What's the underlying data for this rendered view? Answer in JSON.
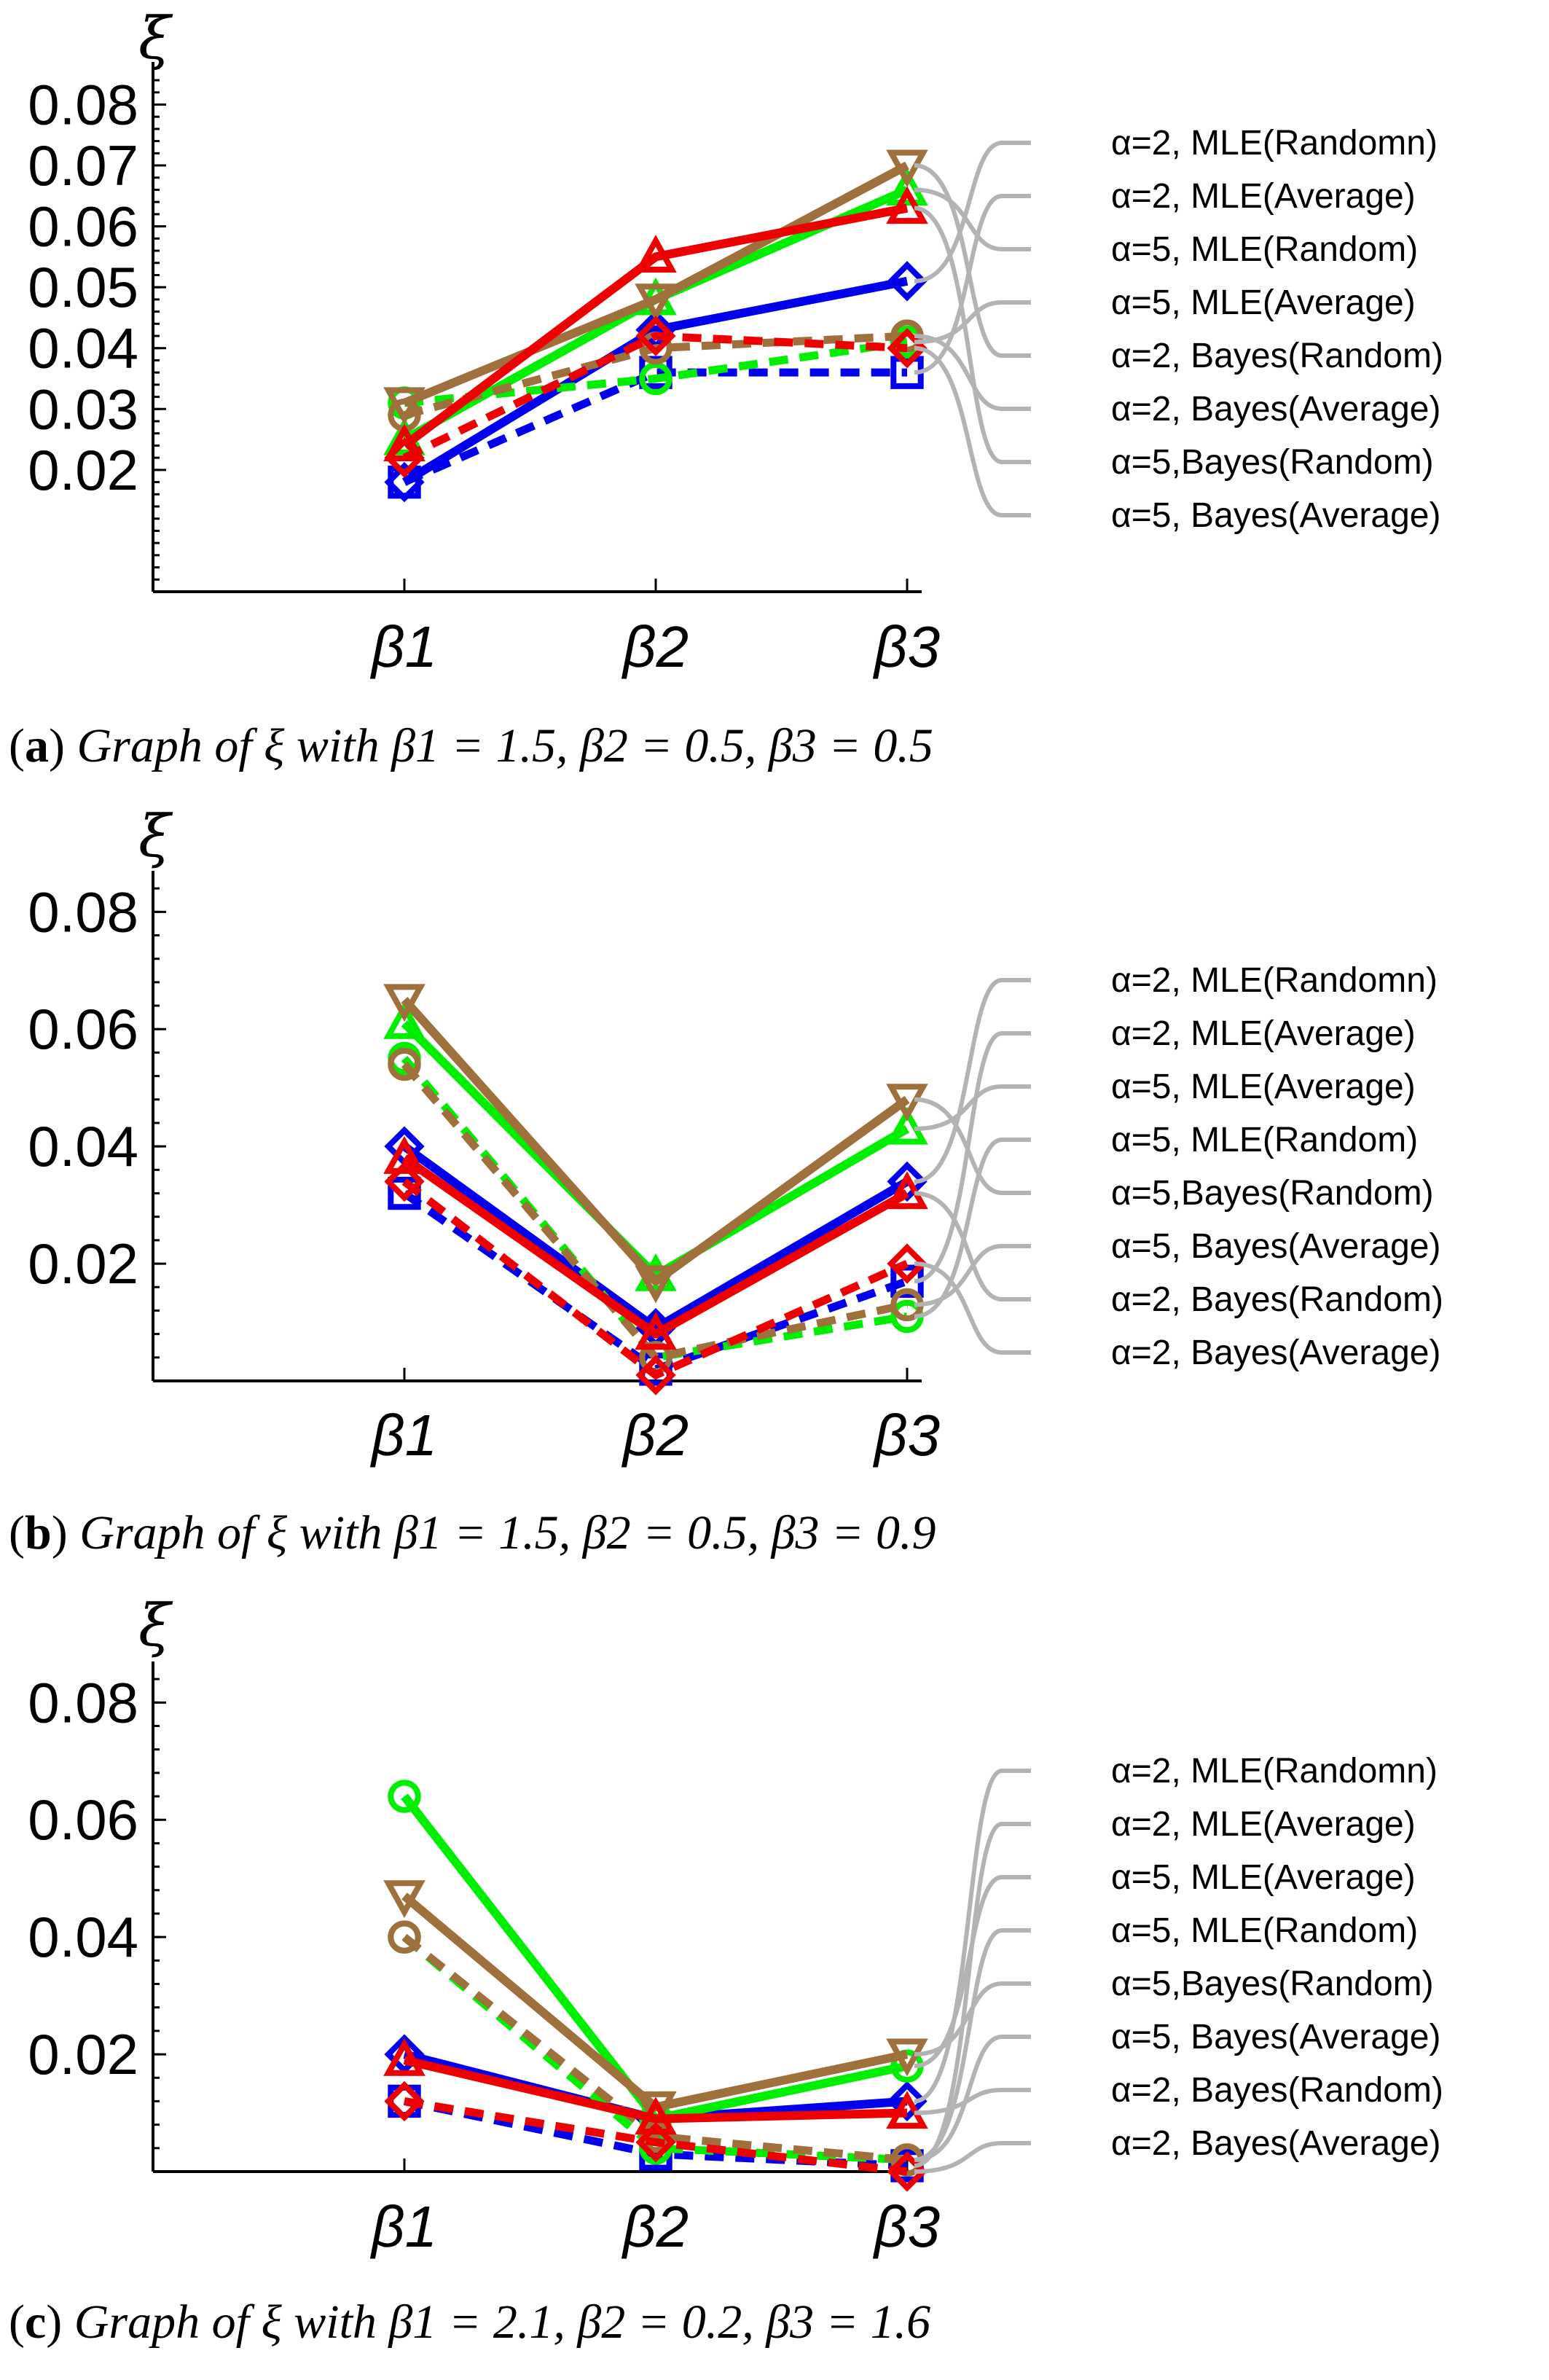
{
  "legend_line_color": "#b3b3b3",
  "palette": {
    "blue": "#0000ee",
    "green": "#00ee00",
    "red": "#ee0000",
    "brown": "#a0703c"
  },
  "chart_data": [
    {
      "type": "line",
      "id": "a",
      "title": "Graph of ξ with β1 = 1.5, β2 = 0.5, β3 = 0.5",
      "caption": {
        "label": "a",
        "text": "Graph of ξ with β1 = 1.5, β2 = 0.5, β3 = 0.5"
      },
      "ylabel": "ξ",
      "categories": [
        "β1",
        "β2",
        "β3"
      ],
      "ylim": [
        0.0,
        0.087
      ],
      "yticks": [
        0.02,
        0.03,
        0.04,
        0.05,
        0.06,
        0.07,
        0.08
      ],
      "ytick_labels": [
        "0.02",
        "0.03",
        "0.04",
        "0.05",
        "0.06",
        "0.07",
        "0.08"
      ],
      "series": [
        {
          "name": "blue-solid",
          "color": "blue",
          "dash": false,
          "marker": "diamond",
          "values": [
            0.018,
            0.043,
            0.051
          ]
        },
        {
          "name": "blue-dashed",
          "color": "blue",
          "dash": true,
          "marker": "square",
          "values": [
            0.018,
            0.036,
            0.036
          ]
        },
        {
          "name": "green-solid",
          "color": "green",
          "dash": false,
          "marker": "triangle-up",
          "values": [
            0.025,
            0.048,
            0.066
          ]
        },
        {
          "name": "green-dashed",
          "color": "green",
          "dash": true,
          "marker": "circle",
          "values": [
            0.031,
            0.035,
            0.041
          ]
        },
        {
          "name": "brown-solid",
          "color": "brown",
          "dash": false,
          "marker": "triangle-down",
          "values": [
            0.031,
            0.048,
            0.07
          ]
        },
        {
          "name": "brown-dashed",
          "color": "brown",
          "dash": true,
          "marker": "circle",
          "values": [
            0.029,
            0.04,
            0.042
          ]
        },
        {
          "name": "red-solid",
          "color": "red",
          "dash": false,
          "marker": "triangle-up",
          "values": [
            0.024,
            0.055,
            0.063
          ]
        },
        {
          "name": "red-dashed",
          "color": "red",
          "dash": true,
          "marker": "diamond",
          "values": [
            0.022,
            0.042,
            0.04
          ]
        }
      ],
      "legend": [
        "α=2, MLE(Randomn)",
        "α=2, MLE(Average)",
        "α=5, MLE(Random)",
        "α=5, MLE(Average)",
        "α=2, Bayes(Random)",
        "α=2, Bayes(Average)",
        "α=5,Bayes(Random)",
        "α=5, Bayes(Average)"
      ]
    },
    {
      "type": "line",
      "id": "b",
      "title": "Graph of ξ with β1 = 1.5, β2 = 0.5, β3 = 0.9",
      "caption": {
        "label": "b",
        "text": "Graph of ξ with β1 = 1.5, β2 = 0.5, β3 = 0.9"
      },
      "ylabel": "ξ",
      "categories": [
        "β1",
        "β2",
        "β3"
      ],
      "ylim": [
        0.0,
        0.087
      ],
      "yticks": [
        0.02,
        0.04,
        0.06,
        0.08
      ],
      "ytick_labels": [
        "0.02",
        "0.04",
        "0.06",
        "0.08"
      ],
      "series": [
        {
          "name": "blue-solid",
          "color": "blue",
          "dash": false,
          "marker": "diamond",
          "values": [
            0.04,
            0.009,
            0.034
          ]
        },
        {
          "name": "blue-dashed",
          "color": "blue",
          "dash": true,
          "marker": "square",
          "values": [
            0.032,
            0.002,
            0.017
          ]
        },
        {
          "name": "green-solid",
          "color": "green",
          "dash": false,
          "marker": "triangle-up",
          "values": [
            0.061,
            0.018,
            0.043
          ]
        },
        {
          "name": "green-dashed",
          "color": "green",
          "dash": true,
          "marker": "circle",
          "values": [
            0.055,
            0.004,
            0.011
          ]
        },
        {
          "name": "brown-solid",
          "color": "brown",
          "dash": false,
          "marker": "triangle-down",
          "values": [
            0.065,
            0.017,
            0.048
          ]
        },
        {
          "name": "brown-dashed",
          "color": "brown",
          "dash": true,
          "marker": "circle",
          "values": [
            0.054,
            0.004,
            0.013
          ]
        },
        {
          "name": "red-solid",
          "color": "red",
          "dash": false,
          "marker": "triangle-up",
          "values": [
            0.038,
            0.008,
            0.032
          ]
        },
        {
          "name": "red-dashed",
          "color": "red",
          "dash": true,
          "marker": "diamond",
          "values": [
            0.034,
            0.001,
            0.02
          ]
        }
      ],
      "legend": [
        "α=2, MLE(Randomn)",
        "α=2, MLE(Average)",
        "α=5, MLE(Average)",
        "α=5, MLE(Random)",
        "α=5,Bayes(Random)",
        "α=5, Bayes(Average)",
        "α=2, Bayes(Random)",
        "α=2, Bayes(Average)"
      ]
    },
    {
      "type": "line",
      "id": "c",
      "title": "Graph of ξ with β1 = 2.1, β2 = 0.2, β3 = 1.6",
      "caption": {
        "label": "c",
        "text": "Graph of ξ with β1 = 2.1, β2 = 0.2, β3 = 1.6"
      },
      "ylabel": "ξ",
      "categories": [
        "β1",
        "β2",
        "β3"
      ],
      "ylim": [
        0.0,
        0.087
      ],
      "yticks": [
        0.02,
        0.04,
        0.06,
        0.08
      ],
      "ytick_labels": [
        "0.02",
        "0.04",
        "0.06",
        "0.08"
      ],
      "series": [
        {
          "name": "blue-solid",
          "color": "blue",
          "dash": false,
          "marker": "diamond",
          "values": [
            0.02,
            0.009,
            0.012
          ]
        },
        {
          "name": "blue-dashed",
          "color": "blue",
          "dash": true,
          "marker": "square",
          "values": [
            0.012,
            0.003,
            0.001
          ]
        },
        {
          "name": "green-solid",
          "color": "green",
          "dash": false,
          "marker": "circle",
          "values": [
            0.064,
            0.009,
            0.018
          ]
        },
        {
          "name": "green-dashed",
          "color": "green",
          "dash": true,
          "marker": "circle",
          "values": [
            0.04,
            0.004,
            0.002
          ]
        },
        {
          "name": "brown-solid",
          "color": "brown",
          "dash": false,
          "marker": "triangle-down",
          "values": [
            0.047,
            0.011,
            0.02
          ]
        },
        {
          "name": "brown-dashed",
          "color": "brown",
          "dash": true,
          "marker": "circle",
          "values": [
            0.04,
            0.006,
            0.002
          ]
        },
        {
          "name": "red-solid",
          "color": "red",
          "dash": false,
          "marker": "triangle-up",
          "values": [
            0.019,
            0.009,
            0.01
          ]
        },
        {
          "name": "red-dashed",
          "color": "red",
          "dash": true,
          "marker": "diamond",
          "values": [
            0.012,
            0.005,
            0.0
          ]
        }
      ],
      "legend": [
        "α=2, MLE(Randomn)",
        "α=2, MLE(Average)",
        "α=5, MLE(Average)",
        "α=5, MLE(Random)",
        "α=5,Bayes(Random)",
        "α=5, Bayes(Average)",
        "α=2, Bayes(Random)",
        "α=2, Bayes(Average)"
      ]
    }
  ]
}
